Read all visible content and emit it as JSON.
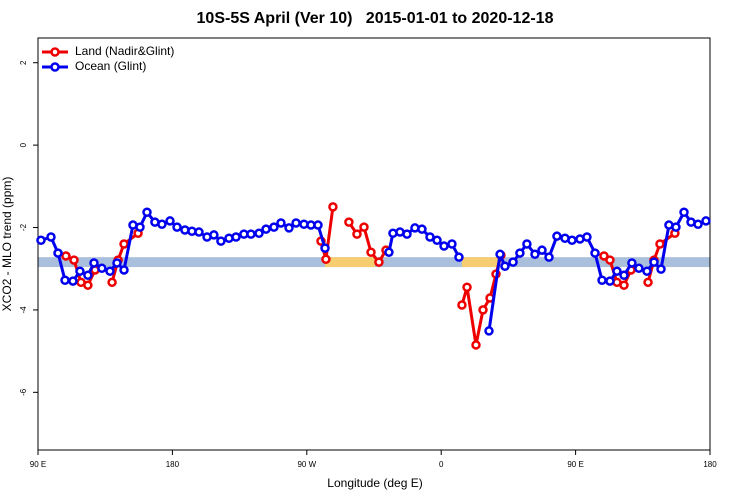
{
  "chart_data": {
    "type": "line",
    "title": "10S-5S April (Ver 10)   2015-01-01 to 2020-12-18",
    "x_label": "Longitude (deg E)",
    "y_label": "XCO2 - MLO trend (ppm)",
    "xlim": [
      90,
      540
    ],
    "xticks": [
      {
        "value": 90,
        "label": "90 E"
      },
      180,
      {
        "value": 270,
        "label": "90 W"
      },
      {
        "value": 360,
        "label": "0"
      },
      {
        "value": 450,
        "label": "90 E"
      },
      {
        "value": 540,
        "label": "180"
      }
    ],
    "ylim": [
      -7.4,
      2.6
    ],
    "yticks": [
      2,
      0,
      -2,
      -4,
      -6
    ],
    "legend": "top-left",
    "band": {
      "range": [
        -2.96,
        -2.72
      ],
      "color": "#a9bfdc",
      "highlights": [
        {
          "x": [
            282.2,
            315.7
          ],
          "color": "#f7cd72"
        },
        {
          "x": [
            373.9,
            399.4
          ],
          "color": "#f7cd72"
        }
      ]
    },
    "series": [
      {
        "name": "Land (Nadir&Glint)",
        "color": "#ee0000",
        "x": [
          108.7,
          114.1,
          118.8,
          123.4,
          128.2,
          null,
          139.6,
          143.6,
          147.6,
          157.0,
          null,
          279.5,
          282.8,
          287.5,
          null,
          298.2,
          303.6,
          308.3,
          313.0,
          318.3,
          323.0,
          null,
          373.9,
          377.3,
          383.3,
          388.0,
          392.7,
          396.7,
          400.0,
          null,
          469.0,
          473.0,
          477.7,
          482.4,
          487.1,
          null,
          498.5,
          502.5,
          506.5,
          516.5
        ],
        "values": [
          -2.69,
          -2.79,
          -3.33,
          -3.4,
          -3.03,
          null,
          -3.33,
          -2.79,
          -2.4,
          -2.14,
          null,
          -2.33,
          -2.77,
          -1.5,
          null,
          -1.87,
          -2.16,
          -1.99,
          -2.6,
          -2.84,
          -2.55,
          null,
          -3.88,
          -3.45,
          -4.85,
          -4.0,
          -3.71,
          -3.13,
          -2.67,
          null,
          -2.69,
          -2.79,
          -3.33,
          -3.4,
          -3.03,
          null,
          -3.33,
          -2.79,
          -2.4,
          -2.14
        ]
      },
      {
        "name": "Ocean (Glint)",
        "color": "#0000ee",
        "x": [
          92.0,
          98.7,
          103.4,
          108.1,
          113.4,
          118.1,
          123.4,
          127.5,
          132.8,
          138.2,
          142.9,
          147.6,
          153.6,
          158.3,
          163.0,
          168.3,
          173.0,
          178.4,
          183.1,
          188.4,
          193.1,
          197.8,
          203.2,
          207.8,
          212.5,
          217.9,
          222.6,
          227.9,
          232.6,
          238.0,
          242.7,
          248.0,
          252.7,
          258.1,
          262.8,
          268.1,
          272.8,
          277.5,
          282.2,
          null,
          325.0,
          327.7,
          332.4,
          337.1,
          342.4,
          347.1,
          352.5,
          357.2,
          361.9,
          367.2,
          371.9,
          null,
          392.0,
          399.4,
          402.7,
          408.1,
          412.7,
          417.4,
          422.8,
          427.5,
          432.2,
          437.5,
          442.9,
          447.6,
          452.9,
          457.6,
          463.0,
          467.7,
          473.0,
          477.7,
          482.4,
          487.7,
          492.4,
          497.8,
          502.5,
          507.2,
          512.5,
          517.2,
          522.6,
          527.3,
          532.0,
          537.3
        ],
        "values": [
          -2.31,
          -2.23,
          -2.62,
          -3.28,
          -3.3,
          -3.06,
          -3.16,
          -2.86,
          -2.99,
          -3.06,
          -2.86,
          -3.03,
          -1.94,
          -1.99,
          -1.63,
          -1.87,
          -1.92,
          -1.84,
          -1.99,
          -2.06,
          -2.09,
          -2.11,
          -2.23,
          -2.18,
          -2.33,
          -2.26,
          -2.23,
          -2.16,
          -2.16,
          -2.14,
          -2.04,
          -1.99,
          -1.89,
          -2.01,
          -1.89,
          -1.92,
          -1.94,
          -1.94,
          -2.5,
          null,
          -2.6,
          -2.14,
          -2.11,
          -2.16,
          -2.01,
          -2.04,
          -2.23,
          -2.31,
          -2.45,
          -2.4,
          -2.72,
          null,
          -4.51,
          -2.65,
          -2.94,
          -2.84,
          -2.62,
          -2.4,
          -2.65,
          -2.55,
          -2.72,
          -2.21,
          -2.26,
          -2.31,
          -2.28,
          -2.23,
          -2.62,
          -3.28,
          -3.3,
          -3.06,
          -3.16,
          -2.86,
          -2.99,
          -3.06,
          -2.84,
          -3.01,
          -1.94,
          -1.99,
          -1.63,
          -1.87,
          -1.92,
          -1.84
        ]
      }
    ]
  }
}
